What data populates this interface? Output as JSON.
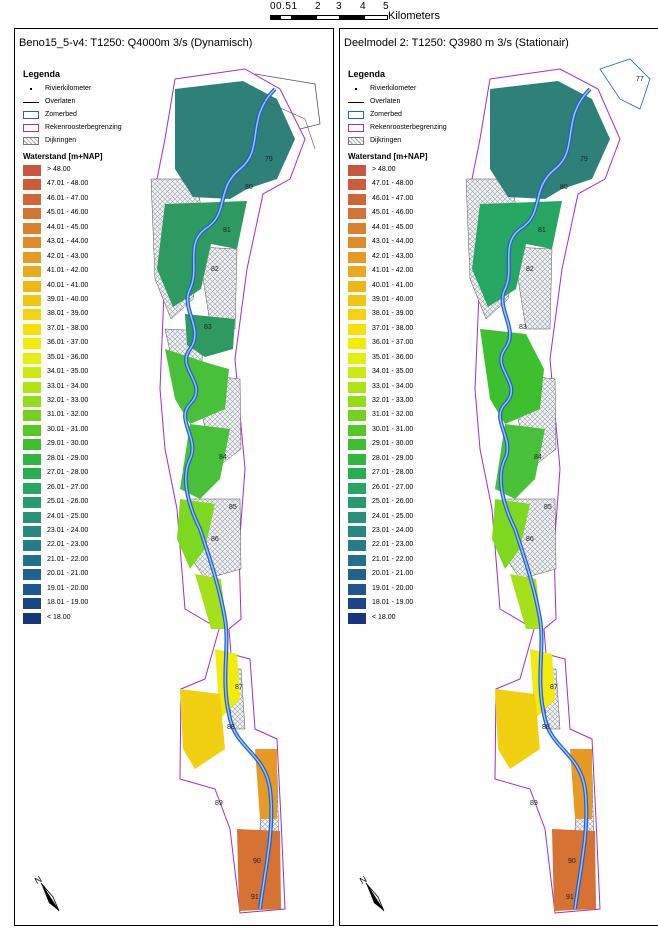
{
  "scalebar": {
    "ticks": [
      "00.51",
      "2",
      "3",
      "4",
      "5"
    ],
    "unit": "Kilometers"
  },
  "panels": [
    {
      "title": "Beno15_5-v4: T1250: Q4000m 3/s (Dynamisch)",
      "chainage_labels": [
        "79",
        "80",
        "81",
        "82",
        "83",
        "84",
        "85",
        "86",
        "87",
        "88",
        "89",
        "90",
        "91"
      ]
    },
    {
      "title": "Deelmodel 2: T1250: Q3980 m 3/s (Stationair)",
      "chainage_labels": [
        "77",
        "79",
        "80",
        "81",
        "82",
        "83",
        "84",
        "85",
        "86",
        "87",
        "88",
        "89",
        "90",
        "91"
      ]
    }
  ],
  "legend": {
    "title": "Legenda",
    "items": [
      {
        "label": "Rivierkilometer",
        "symbol": "dot"
      },
      {
        "label": "Overlaten",
        "symbol": "line"
      },
      {
        "label": "Zomerbed",
        "symbol": "blue-outline"
      },
      {
        "label": "Rekenroosterbegrenzing",
        "symbol": "purple-outline"
      },
      {
        "label": "Dijkringen",
        "symbol": "hatch"
      }
    ],
    "waterstand_title": "Waterstand [m+NAP]",
    "classes": [
      {
        "label": "> 48.00",
        "color": "#c8553d"
      },
      {
        "label": "47.01 - 48.00",
        "color": "#cc5c3b"
      },
      {
        "label": "46.01 - 47.00",
        "color": "#d06638"
      },
      {
        "label": "45.01 - 46.00",
        "color": "#d67234"
      },
      {
        "label": "44.01 - 45.00",
        "color": "#dc7f2e"
      },
      {
        "label": "43.01 - 44.00",
        "color": "#e08a2a"
      },
      {
        "label": "42.01 - 43.00",
        "color": "#e69a24"
      },
      {
        "label": "41.01 - 42.00",
        "color": "#eaa91e"
      },
      {
        "label": "40.01 - 41.00",
        "color": "#eeb718"
      },
      {
        "label": "39.01 - 40.00",
        "color": "#f1c514"
      },
      {
        "label": "38.01 - 39.00",
        "color": "#f4d210"
      },
      {
        "label": "37.01 - 38.00",
        "color": "#f5df0d"
      },
      {
        "label": "36.01 - 37.00",
        "color": "#f2ec0b"
      },
      {
        "label": "35.01 - 36.00",
        "color": "#e2f00b"
      },
      {
        "label": "34.01 - 35.00",
        "color": "#c9ec0d"
      },
      {
        "label": "33.01 - 34.00",
        "color": "#aee412"
      },
      {
        "label": "32.01 - 33.00",
        "color": "#92dc18"
      },
      {
        "label": "31.01 - 32.00",
        "color": "#74d21e"
      },
      {
        "label": "30.01 - 31.00",
        "color": "#55c826"
      },
      {
        "label": "29.01 - 30.00",
        "color": "#3dbf30"
      },
      {
        "label": "28.01 - 29.00",
        "color": "#2eb63e"
      },
      {
        "label": "27.01 - 28.00",
        "color": "#28ad52"
      },
      {
        "label": "26.01 - 27.00",
        "color": "#27a562"
      },
      {
        "label": "25.01 - 26.00",
        "color": "#279b6f"
      },
      {
        "label": "24.01 - 25.00",
        "color": "#27917a"
      },
      {
        "label": "23.01 - 24.00",
        "color": "#278783"
      },
      {
        "label": "22.01 - 23.00",
        "color": "#267c88"
      },
      {
        "label": "21.01 - 22.00",
        "color": "#24708c"
      },
      {
        "label": "20.01 - 21.00",
        "color": "#22638d"
      },
      {
        "label": "19.01 - 20.00",
        "color": "#1f558d"
      },
      {
        "label": "18.01 - 19.00",
        "color": "#1c4489"
      },
      {
        "label": "< 18.00",
        "color": "#183580"
      }
    ]
  },
  "north_label": "N",
  "map_colors": {
    "dark_teal": "#2f8078",
    "mid_green": "#2e9a62",
    "green": "#49c03a",
    "lime": "#a6e01a",
    "yellow": "#f0d010",
    "orange": "#de8a2c",
    "dark_orange": "#d07030",
    "hatch": "#9aa0a8",
    "zomerbed": "#1f5fd0",
    "rekenrooster": "#9b30c8",
    "dyke": "#555555"
  }
}
